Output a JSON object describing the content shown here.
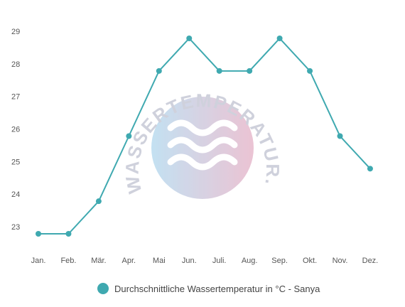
{
  "chart_data": {
    "type": "line",
    "categories": [
      "Jan.",
      "Feb.",
      "Mär.",
      "Apr.",
      "Mai",
      "Jun.",
      "Juli.",
      "Aug.",
      "Sep.",
      "Okt.",
      "Nov.",
      "Dez."
    ],
    "series": [
      {
        "name": "Durchschnittliche Wassertemperatur in °C - Sanya",
        "values": [
          23,
          23,
          24,
          26,
          28,
          29,
          28,
          28,
          29,
          28,
          26,
          25
        ],
        "color": "#3fa9b0"
      }
    ],
    "y_ticks": [
      23,
      24,
      25,
      26,
      27,
      28,
      29
    ],
    "ylim": [
      22.8,
      29.2
    ],
    "grid": false,
    "legend_position": "bottom-center"
  },
  "watermark": {
    "text": "WASSERTEMPERATUR.ORG",
    "colors": [
      "#b9dcf0",
      "#e8b9cc"
    ]
  }
}
